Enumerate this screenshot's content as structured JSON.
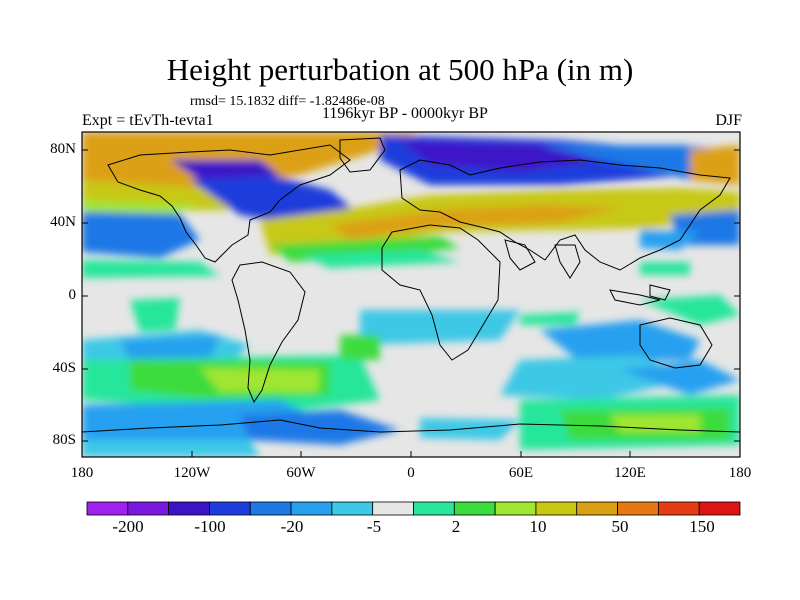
{
  "title": "Height perturbation at 500 hPa (in m)",
  "stats": "rmsd= 15.1832 diff= -1.82486e-08",
  "period": "1196kyr BP - 0000kyr BP",
  "experiment": "Expt = tEvTh-tevta1",
  "season": "DJF",
  "y_axis_labels": [
    "80N",
    "40N",
    "0",
    "40S",
    "80S"
  ],
  "x_axis_labels": [
    "180",
    "120W",
    "60W",
    "0",
    "60E",
    "120E",
    "180"
  ],
  "colorbar": {
    "colors": [
      "#a020f0",
      "#7b18e0",
      "#3c14c8",
      "#1e3cdc",
      "#1e78e6",
      "#28a0f0",
      "#3cc8e6",
      "#e6e6e6",
      "#28e69b",
      "#3cdc3c",
      "#a0e632",
      "#c8c814",
      "#dca014",
      "#e67814",
      "#e63c14",
      "#dc1414"
    ],
    "labels": [
      "-200",
      "-100",
      "-20",
      "-5",
      "2",
      "10",
      "50",
      "150"
    ]
  },
  "colors": {
    "ocean_neutral": "#e6e6e6",
    "coastline": "#000000"
  }
}
